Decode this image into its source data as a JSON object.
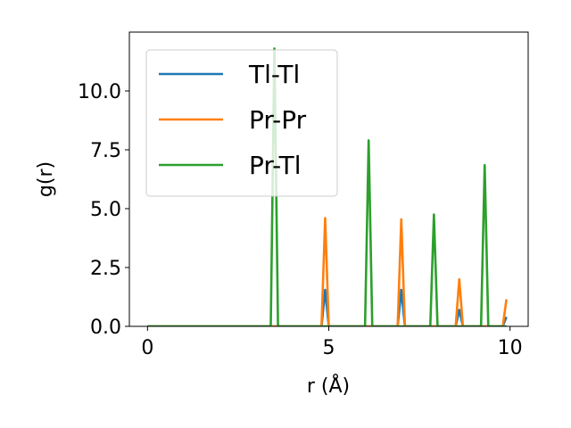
{
  "chart_data": {
    "type": "line",
    "xlabel": "r (Å)",
    "ylabel": "g(r)",
    "xlim": [
      -0.5,
      10.5
    ],
    "ylim": [
      0,
      12.5
    ],
    "xticks": [
      0,
      5,
      10
    ],
    "xtick_labels": [
      "0",
      "5",
      "10"
    ],
    "yticks": [
      0.0,
      2.5,
      5.0,
      7.5,
      10.0
    ],
    "ytick_labels": [
      "0.0",
      "2.5",
      "5.0",
      "7.5",
      "10.0"
    ],
    "grid": false,
    "legend_position": "upper-left",
    "series": [
      {
        "name": "Tl-Tl",
        "color": "#1f77b4",
        "x": [
          0,
          4.8,
          4.9,
          5.0,
          6.9,
          7.0,
          7.1,
          8.5,
          8.6,
          8.7,
          9.8,
          9.9
        ],
        "y": [
          0,
          0,
          1.55,
          0,
          0,
          1.55,
          0,
          0,
          0.7,
          0,
          0,
          0.4
        ]
      },
      {
        "name": "Pr-Pr",
        "color": "#ff7f0e",
        "x": [
          0,
          4.8,
          4.9,
          5.0,
          6.9,
          7.0,
          7.1,
          8.5,
          8.6,
          8.7,
          9.8,
          9.9
        ],
        "y": [
          0,
          0,
          4.6,
          0,
          0,
          4.55,
          0,
          0,
          2.0,
          0,
          0,
          1.15
        ]
      },
      {
        "name": "Pr-Tl",
        "color": "#2ca02c",
        "x": [
          0,
          3.4,
          3.5,
          3.6,
          6.0,
          6.1,
          6.2,
          7.8,
          7.9,
          8.0,
          9.2,
          9.3,
          9.4,
          9.9
        ],
        "y": [
          0,
          0,
          11.8,
          0,
          0,
          7.9,
          0,
          0,
          4.75,
          0,
          0,
          6.85,
          0,
          0
        ]
      }
    ]
  }
}
